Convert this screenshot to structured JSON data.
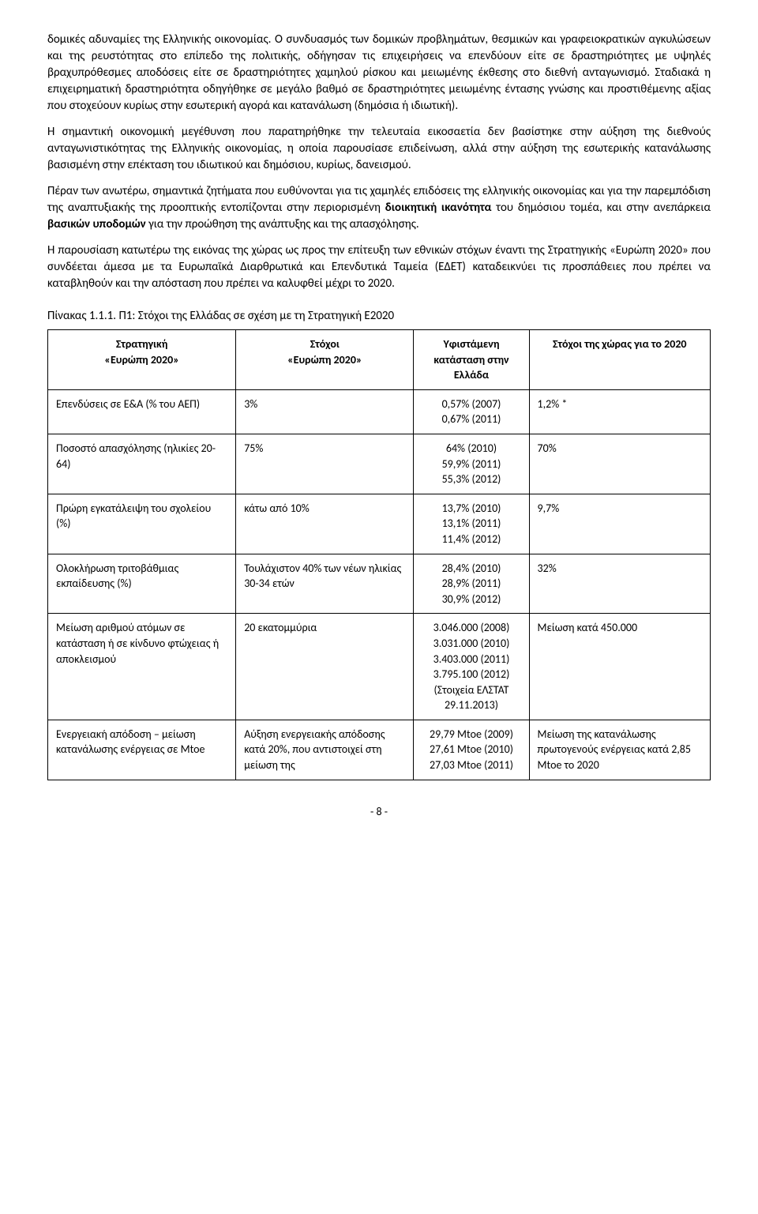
{
  "paragraphs": {
    "p1_a": "δομικές αδυναμίες της Ελληνικής οικονομίας. Ο συνδυασμός των δομικών προβλημάτων, θεσμικών και γραφειοκρατικών αγκυλώσεων και της ρευστότητας στο επίπεδο της πολιτικής, οδήγησαν τις επιχειρήσεις να επενδύουν είτε σε δραστηριότητες με υψηλές βραχυπρόθεσμες αποδόσεις είτε σε δραστηριότητες χαμηλού ρίσκου και μειωμένης έκθεσης στο διεθνή ανταγωνισμό. Σταδιακά η επιχειρηματική δραστηριότητα οδηγήθηκε σε μεγάλο βαθμό σε δραστηριότητες μειωμένης έντασης γνώσης και προστιθέμενης αξίας που στοχεύουν κυρίως στην εσωτερική αγορά και κατανάλωση (δημόσια ή ιδιωτική).",
    "p2": "Η σημαντική οικονομική μεγέθυνση που παρατηρήθηκε την τελευταία εικοσαετία δεν βασίστηκε στην αύξηση της διεθνούς ανταγωνιστικότητας της Ελληνικής οικονομίας, η οποία παρουσίασε επιδείνωση, αλλά στην αύξηση της εσωτερικής κατανάλωσης βασισμένη στην επέκταση του ιδιωτικού και δημόσιου, κυρίως, δανεισμού.",
    "p3_a": "Πέραν των ανωτέρω, σημαντικά ζητήματα που ευθύνονται για τις χαμηλές επιδόσεις της ελληνικής οικονομίας και για την παρεμπόδιση της αναπτυξιακής της προοπτικής εντοπίζονται στην περιορισμένη ",
    "p3_b": "διοικητική ικανότητα",
    "p3_c": " του δημόσιου τομέα, και στην ανεπάρκεια ",
    "p3_d": "βασικών υποδομών",
    "p3_e": " για την προώθηση της ανάπτυξης και της απασχόλησης.",
    "p4": "Η παρουσίαση κατωτέρω της εικόνας της χώρας ως προς την επίτευξη των εθνικών στόχων έναντι της Στρατηγικής «Ευρώπη 2020» που συνδέεται άμεσα με τα Ευρωπαϊκά Διαρθρωτικά και Επενδυτικά Ταμεία (ΕΔΕΤ) καταδεικνύει τις προσπάθειες που πρέπει να καταβληθούν και την απόσταση που πρέπει να καλυφθεί μέχρι το 2020."
  },
  "table": {
    "caption": "Πίνακας 1.1.1. Π1: Στόχοι της Ελλάδας σε σχέση με τη Στρατηγική Ε2020",
    "headers": {
      "h1_l1": "Στρατηγική",
      "h1_l2": "«Ευρώπη 2020»",
      "h2_l1": "Στόχοι",
      "h2_l2": "«Ευρώπη 2020»",
      "h3": "Υφιστάμενη κατάσταση στην Ελλάδα",
      "h4": "Στόχοι της χώρας για το 2020"
    },
    "rows": [
      {
        "c1": "Επενδύσεις σε Ε&Α (% του ΑΕΠ)",
        "c2": "3%",
        "c3": [
          "0,57% (2007)",
          "0,67% (2011)"
        ],
        "c4": "1,2% *"
      },
      {
        "c1": "Ποσοστό απασχόλησης (ηλικίες 20-64)",
        "c2": "75%",
        "c3": [
          "64% (2010)",
          "59,9% (2011)",
          "55,3% (2012)"
        ],
        "c4": "70%"
      },
      {
        "c1": "Πρώρη εγκατάλειψη του σχολείου (%)",
        "c2": "κάτω από 10%",
        "c3": [
          "13,7% (2010)",
          "13,1% (2011)",
          "11,4% (2012)"
        ],
        "c4": "9,7%"
      },
      {
        "c1": "Ολοκλήρωση τριτοβάθμιας εκπαίδευσης (%)",
        "c2": "Τουλάχιστον 40% των νέων ηλικίας 30-34 ετών",
        "c3": [
          "28,4% (2010)",
          "28,9% (2011)",
          "30,9% (2012)"
        ],
        "c4": "32%"
      },
      {
        "c1": "Μείωση αριθμού ατόμων σε κατάσταση ή σε κίνδυνο φτώχειας ή αποκλεισμού",
        "c2": "20 εκατομμύρια",
        "c3": [
          "3.046.000 (2008)",
          "3.031.000 (2010)",
          "3.403.000 (2011)",
          "3.795.100 (2012)",
          "(Στοιχεία ΕΛΣΤΑΤ 29.11.2013)"
        ],
        "c4": "Μείωση κατά 450.000"
      },
      {
        "c1": "Ενεργειακή απόδοση – μείωση κατανάλωσης ενέργειας σε Mtoe",
        "c2": "Αύξηση ενεργειακής απόδοσης κατά 20%, που αντιστοιχεί στη μείωση της",
        "c3": [
          "29,79 Mtoe (2009)",
          "27,61 Mtoe (2010)",
          "27,03 Mtoe (2011)"
        ],
        "c4": "Μείωση της κατανάλωσης πρωτογενούς ενέργειας κατά 2,85 Mtoe το 2020"
      }
    ]
  },
  "page_number": "- 8 -"
}
